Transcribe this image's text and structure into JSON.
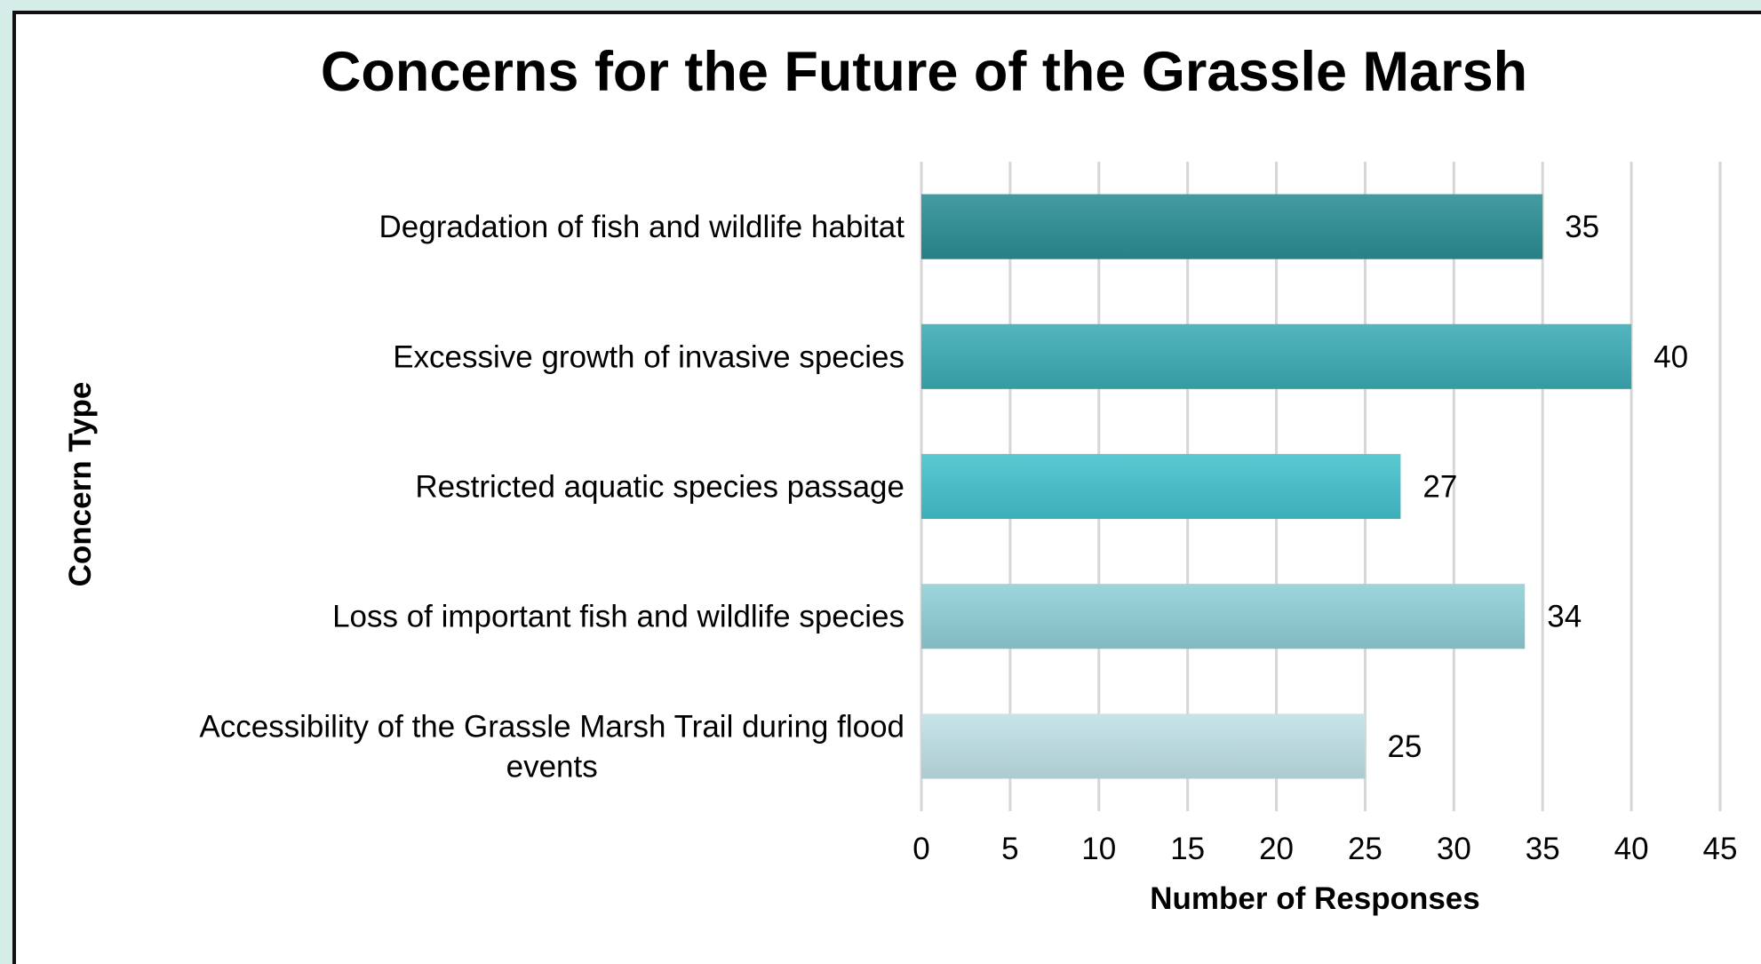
{
  "chart_data": {
    "type": "bar",
    "orientation": "horizontal",
    "title": "Concerns for the Future of the Grassle Marsh",
    "xlabel": "Number of Responses",
    "ylabel": "Concern Type",
    "categories": [
      "Degradation of fish and wildlife habitat",
      "Excessive growth of invasive species",
      "Restricted aquatic species passage",
      "Loss of important fish and wildlife species",
      "Accessibility of the Grassle Marsh Trail during flood events"
    ],
    "values": [
      35,
      40,
      27,
      34,
      25
    ],
    "xlim": [
      0,
      45
    ],
    "xticks": [
      0,
      5,
      10,
      15,
      20,
      25,
      30,
      35,
      40,
      45
    ],
    "grid": "vertical",
    "legend": "none",
    "bar_colors": [
      "#2b8e94",
      "#3bacb5",
      "#43c2cc",
      "#8fd0d6",
      "#bfe2e6"
    ]
  }
}
